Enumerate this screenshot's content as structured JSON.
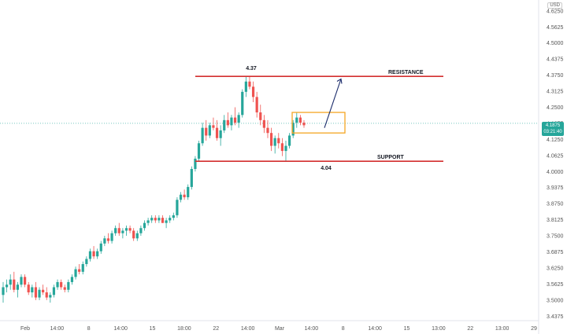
{
  "currency": "USD",
  "current_price": {
    "value": "4.1875",
    "countdown": "03:21:40"
  },
  "colors": {
    "up": "#26a69a",
    "down": "#ef5350",
    "level_line": "#d32f2f",
    "box": "#f5a623",
    "arrow": "#1a2b6b",
    "price_line": "#26a69a"
  },
  "chart_data": {
    "type": "candlestick",
    "price_axis": {
      "ticks": [
        "4.6250",
        "4.5625",
        "4.5000",
        "4.4375",
        "4.3750",
        "4.3125",
        "4.2500",
        "4.1875",
        "4.1250",
        "4.0625",
        "4.0000",
        "3.9375",
        "3.8750",
        "3.8125",
        "3.7500",
        "3.6875",
        "3.6250",
        "3.5625",
        "3.5000",
        "3.4375"
      ],
      "ylim": [
        3.42,
        4.655
      ]
    },
    "time_axis": {
      "ticks": [
        "Feb",
        "14:00",
        "8",
        "14:00",
        "15",
        "18:00",
        "22",
        "14:00",
        "Mar",
        "14:00",
        "8",
        "14:00",
        "15",
        "13:00",
        "22",
        "13:00",
        "29"
      ]
    },
    "candles": [
      [
        3.52,
        3.57,
        3.49,
        3.55
      ],
      [
        3.55,
        3.58,
        3.53,
        3.56
      ],
      [
        3.56,
        3.6,
        3.54,
        3.58
      ],
      [
        3.58,
        3.61,
        3.53,
        3.54
      ],
      [
        3.54,
        3.57,
        3.51,
        3.56
      ],
      [
        3.56,
        3.6,
        3.55,
        3.59
      ],
      [
        3.59,
        3.6,
        3.55,
        3.56
      ],
      [
        3.56,
        3.57,
        3.52,
        3.53
      ],
      [
        3.53,
        3.56,
        3.51,
        3.55
      ],
      [
        3.55,
        3.57,
        3.5,
        3.51
      ],
      [
        3.51,
        3.55,
        3.5,
        3.54
      ],
      [
        3.54,
        3.56,
        3.52,
        3.53
      ],
      [
        3.53,
        3.55,
        3.5,
        3.51
      ],
      [
        3.51,
        3.53,
        3.49,
        3.52
      ],
      [
        3.52,
        3.56,
        3.51,
        3.55
      ],
      [
        3.55,
        3.58,
        3.54,
        3.57
      ],
      [
        3.57,
        3.58,
        3.54,
        3.55
      ],
      [
        3.55,
        3.56,
        3.53,
        3.54
      ],
      [
        3.54,
        3.58,
        3.53,
        3.57
      ],
      [
        3.57,
        3.6,
        3.56,
        3.59
      ],
      [
        3.59,
        3.63,
        3.58,
        3.62
      ],
      [
        3.62,
        3.64,
        3.6,
        3.61
      ],
      [
        3.61,
        3.65,
        3.6,
        3.64
      ],
      [
        3.64,
        3.67,
        3.63,
        3.66
      ],
      [
        3.66,
        3.7,
        3.65,
        3.69
      ],
      [
        3.69,
        3.71,
        3.66,
        3.67
      ],
      [
        3.67,
        3.7,
        3.66,
        3.69
      ],
      [
        3.69,
        3.73,
        3.68,
        3.72
      ],
      [
        3.72,
        3.75,
        3.71,
        3.74
      ],
      [
        3.74,
        3.76,
        3.72,
        3.73
      ],
      [
        3.73,
        3.77,
        3.72,
        3.76
      ],
      [
        3.76,
        3.79,
        3.75,
        3.78
      ],
      [
        3.78,
        3.8,
        3.75,
        3.76
      ],
      [
        3.76,
        3.78,
        3.74,
        3.77
      ],
      [
        3.77,
        3.79,
        3.75,
        3.78
      ],
      [
        3.78,
        3.79,
        3.76,
        3.77
      ],
      [
        3.77,
        3.78,
        3.73,
        3.74
      ],
      [
        3.74,
        3.77,
        3.73,
        3.76
      ],
      [
        3.76,
        3.79,
        3.75,
        3.78
      ],
      [
        3.78,
        3.81,
        3.77,
        3.8
      ],
      [
        3.8,
        3.82,
        3.79,
        3.81
      ],
      [
        3.81,
        3.83,
        3.8,
        3.82
      ],
      [
        3.82,
        3.83,
        3.8,
        3.81
      ],
      [
        3.81,
        3.83,
        3.8,
        3.82
      ],
      [
        3.82,
        3.83,
        3.8,
        3.8
      ],
      [
        3.8,
        3.82,
        3.78,
        3.81
      ],
      [
        3.81,
        3.83,
        3.8,
        3.82
      ],
      [
        3.82,
        3.84,
        3.81,
        3.83
      ],
      [
        3.83,
        3.9,
        3.82,
        3.89
      ],
      [
        3.89,
        3.92,
        3.88,
        3.91
      ],
      [
        3.91,
        3.93,
        3.89,
        3.9
      ],
      [
        3.9,
        3.95,
        3.89,
        3.94
      ],
      [
        3.94,
        4.02,
        3.93,
        4.01
      ],
      [
        4.01,
        4.06,
        4.0,
        4.05
      ],
      [
        4.05,
        4.12,
        4.04,
        4.11
      ],
      [
        4.11,
        4.19,
        4.1,
        4.17
      ],
      [
        4.17,
        4.2,
        4.12,
        4.14
      ],
      [
        4.14,
        4.19,
        4.13,
        4.18
      ],
      [
        4.18,
        4.21,
        4.16,
        4.17
      ],
      [
        4.17,
        4.2,
        4.12,
        4.13
      ],
      [
        4.13,
        4.18,
        4.1,
        4.16
      ],
      [
        4.16,
        4.22,
        4.15,
        4.2
      ],
      [
        4.2,
        4.23,
        4.17,
        4.18
      ],
      [
        4.18,
        4.22,
        4.16,
        4.21
      ],
      [
        4.21,
        4.25,
        4.18,
        4.19
      ],
      [
        4.19,
        4.23,
        4.17,
        4.22
      ],
      [
        4.22,
        4.32,
        4.21,
        4.31
      ],
      [
        4.31,
        4.37,
        4.29,
        4.35
      ],
      [
        4.35,
        4.37,
        4.32,
        4.33
      ],
      [
        4.33,
        4.35,
        4.27,
        4.29
      ],
      [
        4.29,
        4.31,
        4.21,
        4.23
      ],
      [
        4.23,
        4.26,
        4.18,
        4.2
      ],
      [
        4.2,
        4.22,
        4.15,
        4.17
      ],
      [
        4.17,
        4.2,
        4.13,
        4.15
      ],
      [
        4.15,
        4.17,
        4.08,
        4.1
      ],
      [
        4.1,
        4.14,
        4.07,
        4.13
      ],
      [
        4.13,
        4.15,
        4.09,
        4.11
      ],
      [
        4.11,
        4.13,
        4.06,
        4.08
      ],
      [
        4.08,
        4.12,
        4.04,
        4.1
      ],
      [
        4.1,
        4.15,
        4.09,
        4.14
      ],
      [
        4.14,
        4.2,
        4.13,
        4.19
      ],
      [
        4.19,
        4.23,
        4.17,
        4.21
      ],
      [
        4.21,
        4.22,
        4.18,
        4.19
      ],
      [
        4.19,
        4.2,
        4.17,
        4.18
      ]
    ],
    "annotations": {
      "resistance": {
        "price": 4.37,
        "label": "RESISTANCE",
        "value_label": "4.37"
      },
      "support": {
        "price": 4.04,
        "label": "SUPPORT",
        "value_label": "4.04"
      },
      "box": {
        "price_top": 4.23,
        "price_bottom": 4.15
      },
      "arrow": {
        "from_price": 4.17,
        "to_price": 4.36
      }
    },
    "current_price_line": 4.1875
  }
}
